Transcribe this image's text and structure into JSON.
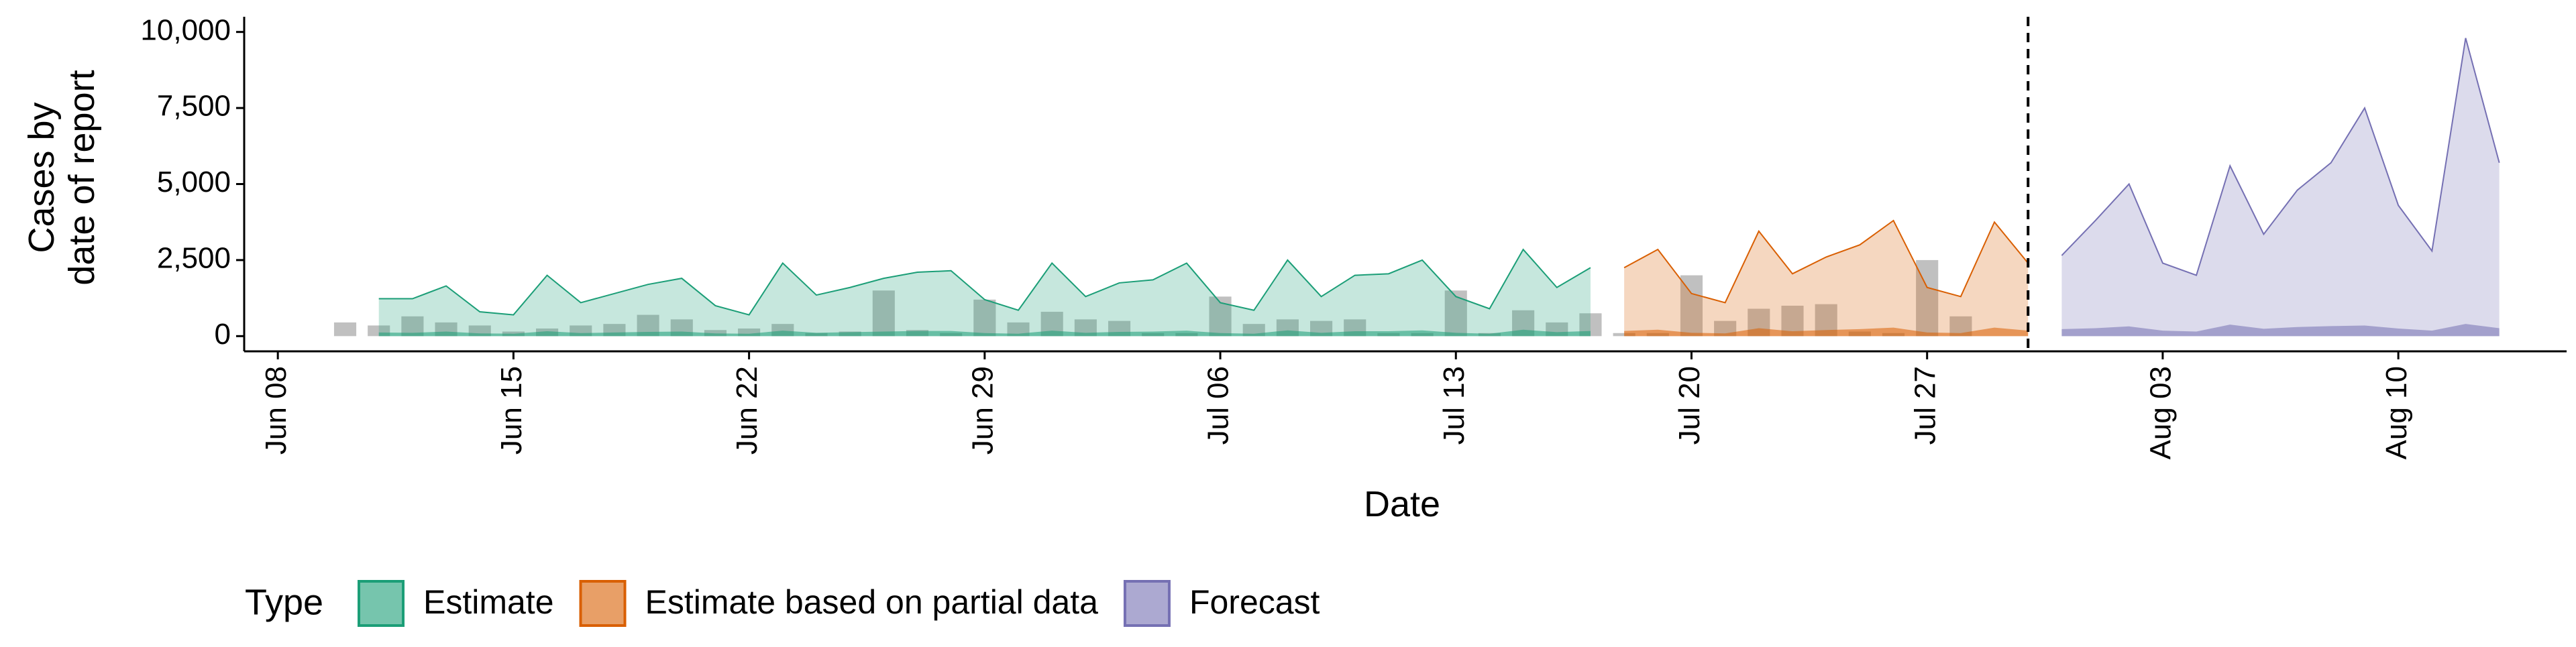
{
  "chart_data": {
    "type": "area",
    "xlabel": "Date",
    "ylabel": [
      "Cases by",
      "date of report"
    ],
    "legend_title": "Type",
    "xlim": [
      "06-07",
      "08-15"
    ],
    "xticks": [
      {
        "value": "06-08",
        "label": "Jun 08"
      },
      {
        "value": "06-15",
        "label": "Jun 15"
      },
      {
        "value": "06-22",
        "label": "Jun 22"
      },
      {
        "value": "06-29",
        "label": "Jun 29"
      },
      {
        "value": "07-06",
        "label": "Jul 06"
      },
      {
        "value": "07-13",
        "label": "Jul 13"
      },
      {
        "value": "07-20",
        "label": "Jul 20"
      },
      {
        "value": "07-27",
        "label": "Jul 27"
      },
      {
        "value": "08-03",
        "label": "Aug 03"
      },
      {
        "value": "08-10",
        "label": "Aug 10"
      }
    ],
    "ylim": [
      -500,
      10500
    ],
    "yticks": [
      0,
      {
        "value": 2500,
        "label": "2,500"
      },
      {
        "value": 5000,
        "label": "5,000"
      },
      {
        "value": 7500,
        "label": "7,500"
      },
      {
        "value": 10000,
        "label": "10,000"
      }
    ],
    "vline": "07-30",
    "observed": {
      "color": "#9e9e9e",
      "x": [
        "06-10",
        "06-11",
        "06-12",
        "06-13",
        "06-14",
        "06-15",
        "06-16",
        "06-17",
        "06-18",
        "06-19",
        "06-20",
        "06-21",
        "06-22",
        "06-23",
        "06-24",
        "06-25",
        "06-26",
        "06-27",
        "06-28",
        "06-29",
        "06-30",
        "07-01",
        "07-02",
        "07-03",
        "07-04",
        "07-05",
        "07-06",
        "07-07",
        "07-08",
        "07-09",
        "07-10",
        "07-11",
        "07-12",
        "07-13",
        "07-14",
        "07-15",
        "07-16",
        "07-17",
        "07-18",
        "07-19",
        "07-20",
        "07-21",
        "07-22",
        "07-23",
        "07-24",
        "07-25",
        "07-26",
        "07-27",
        "07-28"
      ],
      "values": [
        450,
        350,
        650,
        450,
        350,
        150,
        250,
        350,
        400,
        700,
        550,
        200,
        250,
        400,
        100,
        150,
        1500,
        200,
        100,
        1200,
        450,
        800,
        550,
        500,
        100,
        100,
        1300,
        400,
        550,
        500,
        550,
        100,
        100,
        1500,
        100,
        850,
        450,
        750,
        100,
        100,
        2000,
        500,
        900,
        1000,
        1050,
        150,
        100,
        2500,
        650
      ]
    },
    "series": [
      {
        "name": "Estimate",
        "color": "#1b9e77",
        "x": [
          "06-11",
          "06-12",
          "06-13",
          "06-14",
          "06-15",
          "06-16",
          "06-17",
          "06-18",
          "06-19",
          "06-20",
          "06-21",
          "06-22",
          "06-23",
          "06-24",
          "06-25",
          "06-26",
          "06-27",
          "06-28",
          "06-29",
          "06-30",
          "07-01",
          "07-02",
          "07-03",
          "07-04",
          "07-05",
          "07-06",
          "07-07",
          "07-08",
          "07-09",
          "07-10",
          "07-11",
          "07-12",
          "07-13",
          "07-14",
          "07-15",
          "07-16",
          "07-17"
        ],
        "values": [
          1230,
          1230,
          1650,
          800,
          700,
          2000,
          1100,
          1400,
          1700,
          1900,
          1000,
          700,
          2400,
          1350,
          1600,
          1900,
          2100,
          2150,
          1200,
          850,
          2400,
          1300,
          1750,
          1850,
          2400,
          1100,
          850,
          2500,
          1300,
          2000,
          2050,
          2500,
          1300,
          900,
          2850,
          1600,
          2250
        ],
        "lower": [
          120,
          110,
          150,
          90,
          80,
          160,
          100,
          120,
          140,
          150,
          90,
          80,
          180,
          110,
          130,
          150,
          170,
          170,
          100,
          80,
          180,
          110,
          140,
          150,
          180,
          100,
          80,
          190,
          110,
          160,
          160,
          190,
          110,
          80,
          210,
          130,
          170
        ]
      },
      {
        "name": "Estimate based on partial data",
        "color": "#d95f02",
        "x": [
          "07-18",
          "07-19",
          "07-20",
          "07-21",
          "07-22",
          "07-23",
          "07-24",
          "07-25",
          "07-26",
          "07-27",
          "07-28",
          "07-29",
          "07-30"
        ],
        "values": [
          2250,
          2850,
          1400,
          1100,
          3450,
          2050,
          2600,
          3000,
          3800,
          1600,
          1300,
          3750,
          2400
        ],
        "lower": [
          170,
          210,
          110,
          90,
          260,
          160,
          200,
          230,
          280,
          120,
          100,
          280,
          180
        ]
      },
      {
        "name": "Forecast",
        "color": "#7570b3",
        "x": [
          "07-31",
          "08-01",
          "08-02",
          "08-03",
          "08-04",
          "08-05",
          "08-06",
          "08-07",
          "08-08",
          "08-09",
          "08-10",
          "08-11",
          "08-12",
          "08-13"
        ],
        "values": [
          2650,
          3800,
          5000,
          2400,
          2000,
          5600,
          3350,
          4800,
          5700,
          7500,
          4300,
          2800,
          9800,
          5700
        ],
        "lower": [
          230,
          260,
          320,
          180,
          150,
          380,
          240,
          300,
          330,
          350,
          250,
          180,
          400,
          260
        ]
      }
    ]
  }
}
